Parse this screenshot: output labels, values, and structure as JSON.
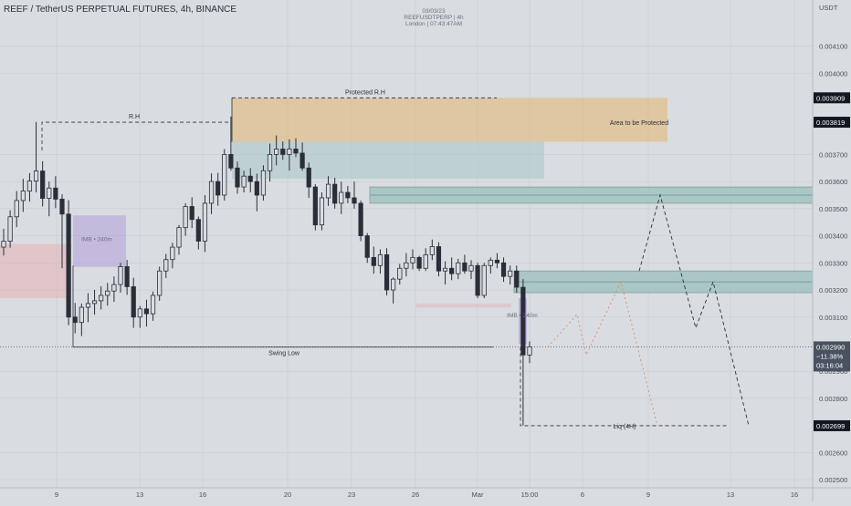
{
  "header": {
    "symbol": "REEF / TetherUS PERPETUAL FUTURES, 4h, BINANCE",
    "info_date": "03/03/23",
    "info_symbol": "REEFUSDTPERP | 4h",
    "info_time": "London | 07:43:47AM"
  },
  "price_axis": {
    "currency": "USDT",
    "ticks": [
      "0.004100",
      "0.004000",
      "0.003700",
      "0.003600",
      "0.003500",
      "0.003400",
      "0.003300",
      "0.003200",
      "0.003100",
      "0.002900",
      "0.002800",
      "0.002600",
      "0.002500"
    ],
    "markers": [
      {
        "label": "0.003909",
        "color": "#131722"
      },
      {
        "label": "0.003819",
        "color": "#131722"
      },
      {
        "label": "0.002699",
        "color": "#131722"
      }
    ],
    "current": {
      "price": "0.002990",
      "change": "−11.38%",
      "countdown": "03:16:04",
      "color": "#4a5160"
    }
  },
  "time_axis": {
    "ticks": [
      "9",
      "13",
      "16",
      "20",
      "23",
      "26",
      "Mar",
      "15:00",
      "6",
      "9",
      "13",
      "16"
    ]
  },
  "annotations": {
    "rh": "R.H",
    "protected_rh": "Protected R.H",
    "area_protected": "Area to be Protected",
    "imb_left": "IMB • 240m",
    "imb_right": "IMB • 240m",
    "swing_low": "Swing Low",
    "liq": "Liq (4H)"
  },
  "colors": {
    "bull": "#2a2e39",
    "bear": "#2a2e39",
    "orange_zone": "#e3b46d",
    "teal_zone": "#9fc2c0",
    "purple_zone": "#b39ddb",
    "red_zone": "#ef9a9a",
    "grid": "#c9cdd3"
  },
  "chart_data": {
    "type": "candlestick",
    "title": "REEF / TetherUS PERPETUAL FUTURES, 4h, BINANCE",
    "y_unit": "USDT",
    "ylim": [
      0.00247,
      0.00427
    ],
    "x_ticks": [
      "9",
      "13",
      "16",
      "20",
      "23",
      "26",
      "Mar",
      "15:00",
      "6",
      "9",
      "13",
      "16"
    ],
    "levels": {
      "protected_rh": 0.003909,
      "area_bottom": 0.003747,
      "rh": 0.003819,
      "swing_low": 0.002989,
      "liq_4h": 0.002699,
      "current": 0.00299
    },
    "candles": [
      [
        0.003358,
        0.003426,
        0.003327,
        0.00338
      ],
      [
        0.00338,
        0.003494,
        0.003356,
        0.00347
      ],
      [
        0.00347,
        0.003565,
        0.003432,
        0.00353
      ],
      [
        0.00353,
        0.00361,
        0.003488,
        0.003565
      ],
      [
        0.003565,
        0.003631,
        0.003526,
        0.003602
      ],
      [
        0.003602,
        0.00382,
        0.00356,
        0.003639
      ],
      [
        0.003639,
        0.003675,
        0.003508,
        0.003538
      ],
      [
        0.003538,
        0.0036,
        0.003472,
        0.003576
      ],
      [
        0.003576,
        0.00362,
        0.003502,
        0.003535
      ],
      [
        0.003535,
        0.003553,
        0.00328,
        0.00348
      ],
      [
        0.00348,
        0.003531,
        0.00307,
        0.0031
      ],
      [
        0.0031,
        0.003152,
        0.00304,
        0.00308
      ],
      [
        0.00308,
        0.00315,
        0.00303,
        0.003136
      ],
      [
        0.003136,
        0.003188,
        0.003081,
        0.00315
      ],
      [
        0.00315,
        0.0032,
        0.003109,
        0.00316
      ],
      [
        0.00316,
        0.003214,
        0.003128,
        0.00318
      ],
      [
        0.00318,
        0.003226,
        0.003142,
        0.003196
      ],
      [
        0.003196,
        0.00325,
        0.003156,
        0.00322
      ],
      [
        0.00322,
        0.0033,
        0.00319,
        0.003286
      ],
      [
        0.003286,
        0.003311,
        0.003182,
        0.003212
      ],
      [
        0.003212,
        0.003245,
        0.00306,
        0.0031
      ],
      [
        0.0031,
        0.003141,
        0.00306,
        0.00313
      ],
      [
        0.00313,
        0.003164,
        0.003065,
        0.003112
      ],
      [
        0.003112,
        0.003194,
        0.003086,
        0.00318
      ],
      [
        0.00318,
        0.003286,
        0.00316,
        0.00327
      ],
      [
        0.00327,
        0.003333,
        0.003244,
        0.003312
      ],
      [
        0.003312,
        0.003374,
        0.00328,
        0.003358
      ],
      [
        0.003358,
        0.00344,
        0.00333,
        0.00343
      ],
      [
        0.00343,
        0.00352,
        0.0034,
        0.003508
      ],
      [
        0.003508,
        0.003542,
        0.003428,
        0.00346
      ],
      [
        0.00346,
        0.003471,
        0.00335,
        0.00338
      ],
      [
        0.00338,
        0.00355,
        0.00334,
        0.00352
      ],
      [
        0.00352,
        0.00363,
        0.00348,
        0.0036
      ],
      [
        0.0036,
        0.003632,
        0.003511,
        0.00355
      ],
      [
        0.00355,
        0.00372,
        0.00353,
        0.0037
      ],
      [
        0.0037,
        0.00384,
        0.00364,
        0.00365
      ],
      [
        0.00365,
        0.003674,
        0.003555,
        0.00358
      ],
      [
        0.00358,
        0.00364,
        0.00356,
        0.00362
      ],
      [
        0.00362,
        0.00365,
        0.00356,
        0.0036
      ],
      [
        0.0036,
        0.003629,
        0.00349,
        0.00355
      ],
      [
        0.00355,
        0.00366,
        0.00353,
        0.00364
      ],
      [
        0.00364,
        0.00374,
        0.0036,
        0.0037
      ],
      [
        0.0037,
        0.00377,
        0.00366,
        0.00372
      ],
      [
        0.00372,
        0.003748,
        0.00368,
        0.0037
      ],
      [
        0.0037,
        0.003756,
        0.00364,
        0.00372
      ],
      [
        0.00372,
        0.00376,
        0.00369,
        0.003705
      ],
      [
        0.003705,
        0.003744,
        0.00364,
        0.00365
      ],
      [
        0.00365,
        0.00367,
        0.00354,
        0.00358
      ],
      [
        0.00358,
        0.00359,
        0.00342,
        0.00344
      ],
      [
        0.00344,
        0.00356,
        0.00342,
        0.00354
      ],
      [
        0.00354,
        0.00362,
        0.00351,
        0.00359
      ],
      [
        0.00359,
        0.003614,
        0.0035,
        0.00352
      ],
      [
        0.00352,
        0.0036,
        0.00348,
        0.00356
      ],
      [
        0.00356,
        0.003584,
        0.00352,
        0.00354
      ],
      [
        0.00354,
        0.0036,
        0.0035,
        0.00352
      ],
      [
        0.00352,
        0.00353,
        0.00338,
        0.0034
      ],
      [
        0.0034,
        0.00341,
        0.0033,
        0.00332
      ],
      [
        0.00332,
        0.00336,
        0.00326,
        0.00329
      ],
      [
        0.00329,
        0.00335,
        0.00326,
        0.00333
      ],
      [
        0.00333,
        0.003354,
        0.00318,
        0.0032
      ],
      [
        0.0032,
        0.003246,
        0.00315,
        0.00324
      ],
      [
        0.00324,
        0.003296,
        0.00322,
        0.00328
      ],
      [
        0.00328,
        0.003336,
        0.00325,
        0.0033
      ],
      [
        0.0033,
        0.00335,
        0.003276,
        0.00332
      ],
      [
        0.00332,
        0.003326,
        0.00327,
        0.00328
      ],
      [
        0.00328,
        0.003354,
        0.00327,
        0.00333
      ],
      [
        0.00333,
        0.003386,
        0.00331,
        0.00336
      ],
      [
        0.00336,
        0.003376,
        0.00325,
        0.00327
      ],
      [
        0.00327,
        0.003306,
        0.00322,
        0.00328
      ],
      [
        0.00328,
        0.00332,
        0.003236,
        0.00326
      ],
      [
        0.00326,
        0.003315,
        0.00324,
        0.0033
      ],
      [
        0.0033,
        0.00333,
        0.00326,
        0.00327
      ],
      [
        0.00327,
        0.00331,
        0.00324,
        0.00329
      ],
      [
        0.00329,
        0.0033,
        0.00317,
        0.00318
      ],
      [
        0.00318,
        0.0033,
        0.00317,
        0.00329
      ],
      [
        0.00329,
        0.00332,
        0.00326,
        0.00331
      ],
      [
        0.00331,
        0.003336,
        0.00328,
        0.0033
      ],
      [
        0.0033,
        0.00332,
        0.00323,
        0.00325
      ],
      [
        0.00325,
        0.00329,
        0.00322,
        0.00327
      ],
      [
        0.00327,
        0.00329,
        0.00319,
        0.00321
      ],
      [
        0.00321,
        0.00324,
        0.0027,
        0.00296
      ],
      [
        0.00296,
        0.00301,
        0.00293,
        0.00299
      ]
    ],
    "projection": {
      "black_dashed": "rise to 0.003550 then drop to 0.002699",
      "orange_dotted": "rise to 0.003230 then drop to 0.002699"
    }
  }
}
